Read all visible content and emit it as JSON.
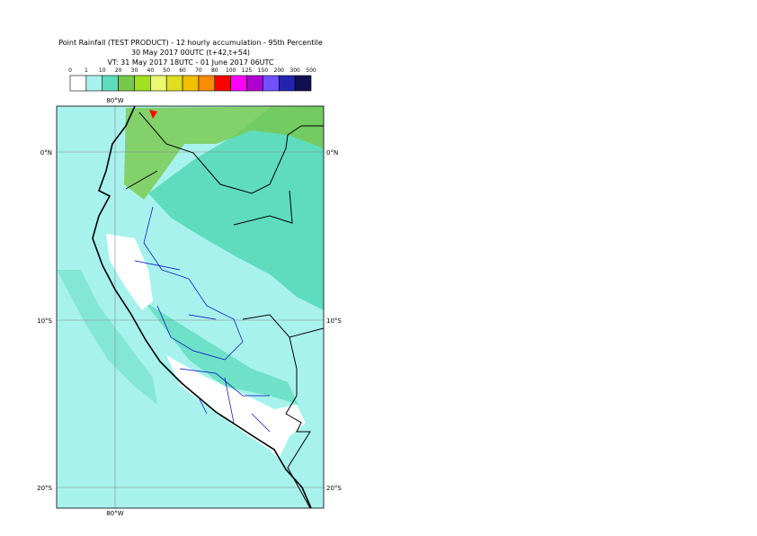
{
  "header": {
    "title_lines": [
      "Point Rainfall (TEST PRODUCT) - 12 hourly accumulation - 95th Percentile",
      "30 May 2017 00UTC (t+42,t+54)",
      "VT: 31 May 2017 18UTC - 01 June 2017 06UTC"
    ]
  },
  "legend": {
    "labels": [
      "0",
      "1",
      "10",
      "20",
      "30",
      "40",
      "50",
      "60",
      "70",
      "80",
      "100",
      "125",
      "150",
      "200",
      "300",
      "500"
    ],
    "colors": [
      "#ffffff",
      "#a8f2ee",
      "#5fdcbe",
      "#78c84a",
      "#a2e020",
      "#eaf872",
      "#dede22",
      "#f2c000",
      "#ff8c00",
      "#ff0000",
      "#ff00ff",
      "#b000d0",
      "#7050ff",
      "#2424b0",
      "#101050"
    ]
  },
  "map": {
    "lon_labels": [
      "80°W"
    ],
    "lat_labels": [
      "0°N",
      "10°S",
      "20°S"
    ]
  }
}
